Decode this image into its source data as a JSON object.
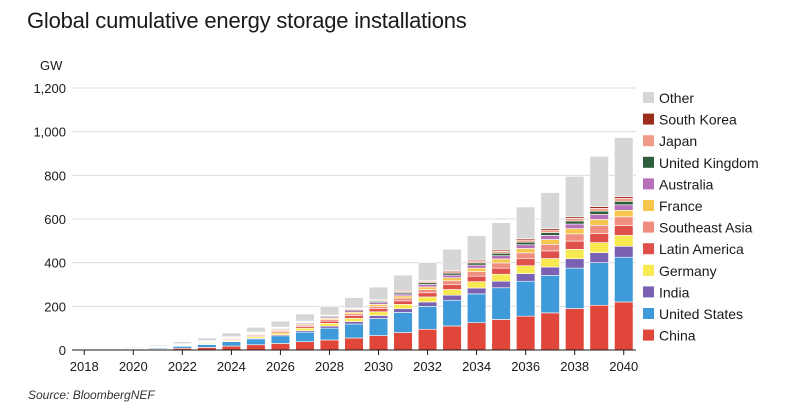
{
  "title": "Global cumulative energy storage installations",
  "source": "Source: BloombergNEF",
  "chart_data": {
    "type": "bar",
    "stacked": true,
    "title": "Global cumulative energy storage installations",
    "ylabel": "GW",
    "xlabel": "",
    "ylim": [
      0,
      1200
    ],
    "yticks": [
      0,
      200,
      400,
      600,
      800,
      1000,
      1200
    ],
    "ytick_labels": [
      "0",
      "200",
      "400",
      "600",
      "800",
      "1,000",
      "1,200"
    ],
    "categories": [
      "2018",
      "2019",
      "2020",
      "2021",
      "2022",
      "2023",
      "2024",
      "2025",
      "2026",
      "2027",
      "2028",
      "2029",
      "2030",
      "2031",
      "2032",
      "2033",
      "2034",
      "2035",
      "2036",
      "2037",
      "2038",
      "2039",
      "2040"
    ],
    "xtick_labels": [
      "2018",
      "2020",
      "2022",
      "2024",
      "2026",
      "2028",
      "2030",
      "2032",
      "2034",
      "2036",
      "2038",
      "2040"
    ],
    "legend_position": "right",
    "series": [
      {
        "name": "China",
        "color": "#e1463a",
        "values": [
          1,
          2,
          3,
          4,
          8,
          12,
          18,
          24,
          30,
          38,
          46,
          55,
          66,
          80,
          95,
          110,
          125,
          140,
          155,
          170,
          190,
          205,
          220
        ]
      },
      {
        "name": "United States",
        "color": "#3e9ad8",
        "values": [
          1,
          2,
          3,
          5,
          9,
          13,
          20,
          27,
          35,
          44,
          54,
          64,
          78,
          92,
          105,
          118,
          132,
          145,
          160,
          172,
          185,
          195,
          205
        ]
      },
      {
        "name": "India",
        "color": "#7b61b3",
        "values": [
          0,
          0,
          0,
          1,
          1,
          2,
          3,
          4,
          5,
          7,
          9,
          11,
          14,
          17,
          20,
          23,
          27,
          30,
          35,
          38,
          43,
          46,
          50
        ]
      },
      {
        "name": "Germany",
        "color": "#f7e94f",
        "values": [
          0,
          1,
          1,
          2,
          3,
          4,
          5,
          7,
          9,
          11,
          13,
          15,
          17,
          20,
          23,
          26,
          29,
          32,
          36,
          39,
          43,
          46,
          50
        ]
      },
      {
        "name": "Latin America",
        "color": "#e0504a",
        "values": [
          0,
          0,
          1,
          1,
          2,
          3,
          4,
          5,
          6,
          8,
          10,
          12,
          14,
          16,
          19,
          22,
          25,
          28,
          32,
          35,
          38,
          42,
          45
        ]
      },
      {
        "name": "Southeast Asia",
        "color": "#ef8d7f",
        "values": [
          0,
          0,
          0,
          1,
          1,
          2,
          3,
          4,
          5,
          6,
          7,
          9,
          11,
          13,
          15,
          18,
          21,
          24,
          27,
          30,
          33,
          37,
          40
        ]
      },
      {
        "name": "France",
        "color": "#f7c64f",
        "values": [
          0,
          0,
          0,
          1,
          1,
          2,
          2,
          3,
          4,
          5,
          6,
          7,
          9,
          10,
          12,
          14,
          16,
          18,
          20,
          22,
          24,
          27,
          30
        ]
      },
      {
        "name": "Australia",
        "color": "#b66fb9",
        "values": [
          0,
          0,
          0,
          1,
          1,
          2,
          2,
          3,
          4,
          5,
          6,
          7,
          8,
          9,
          11,
          12,
          14,
          15,
          17,
          19,
          21,
          23,
          25
        ]
      },
      {
        "name": "United Kingdom",
        "color": "#2d5d3a",
        "values": [
          0,
          0,
          0,
          1,
          1,
          1,
          2,
          2,
          3,
          3,
          4,
          5,
          6,
          7,
          8,
          9,
          10,
          11,
          12,
          13,
          14,
          15,
          16
        ]
      },
      {
        "name": "Japan",
        "color": "#f09b88",
        "values": [
          0,
          0,
          0,
          0,
          1,
          1,
          1,
          2,
          2,
          3,
          3,
          4,
          4,
          5,
          6,
          7,
          8,
          9,
          10,
          11,
          12,
          13,
          14
        ]
      },
      {
        "name": "South Korea",
        "color": "#9c2d1a",
        "values": [
          0,
          0,
          0,
          0,
          1,
          1,
          1,
          1,
          2,
          2,
          2,
          3,
          3,
          4,
          4,
          5,
          5,
          6,
          6,
          7,
          7,
          8,
          8
        ]
      },
      {
        "name": "Other",
        "color": "#d6d6d6",
        "values": [
          2,
          3,
          4,
          5,
          9,
          12,
          17,
          22,
          27,
          33,
          40,
          48,
          58,
          70,
          82,
          98,
          112,
          125,
          145,
          165,
          185,
          230,
          270
        ]
      }
    ]
  }
}
